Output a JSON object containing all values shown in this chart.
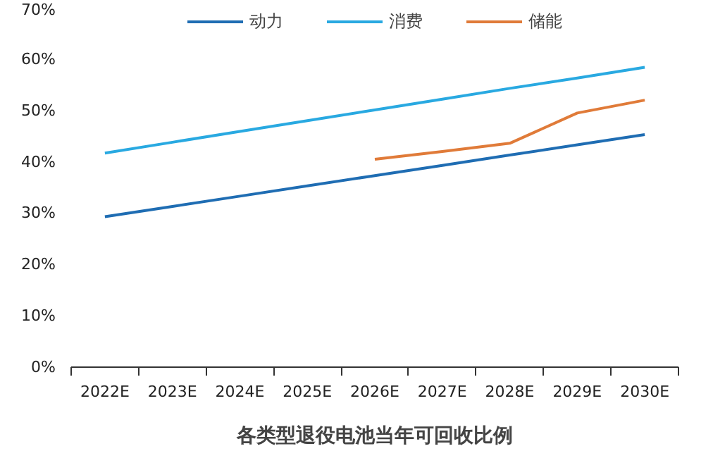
{
  "chart_data": {
    "type": "line",
    "title": "各类型退役电池当年可回收比例",
    "categories": [
      "2022E",
      "2023E",
      "2024E",
      "2025E",
      "2026E",
      "2027E",
      "2028E",
      "2029E",
      "2030E"
    ],
    "series": [
      {
        "name": "动力",
        "color": "#1f6db3",
        "values": [
          29.3,
          31.3,
          33.3,
          35.3,
          37.3,
          39.3,
          41.3,
          43.3,
          45.3
        ]
      },
      {
        "name": "消费",
        "color": "#29a9e1",
        "values": [
          41.7,
          43.8,
          45.9,
          48.0,
          50.1,
          52.2,
          54.3,
          56.3,
          58.4
        ]
      },
      {
        "name": "储能",
        "color": "#e07b39",
        "values": [
          null,
          null,
          null,
          null,
          40.5,
          42.0,
          43.6,
          49.5,
          52.0
        ]
      }
    ],
    "ylim": [
      0,
      70
    ],
    "yticks": [
      {
        "value": 0,
        "label": "0%"
      },
      {
        "value": 10,
        "label": "10%"
      },
      {
        "value": 20,
        "label": "20%"
      },
      {
        "value": 30,
        "label": "30%"
      },
      {
        "value": 40,
        "label": "40%"
      },
      {
        "value": 50,
        "label": "50%"
      },
      {
        "value": 60,
        "label": "60%"
      },
      {
        "value": 70,
        "label": "70%"
      }
    ],
    "grid": false,
    "legend": "top",
    "marker": "none",
    "line_style": "solid"
  }
}
